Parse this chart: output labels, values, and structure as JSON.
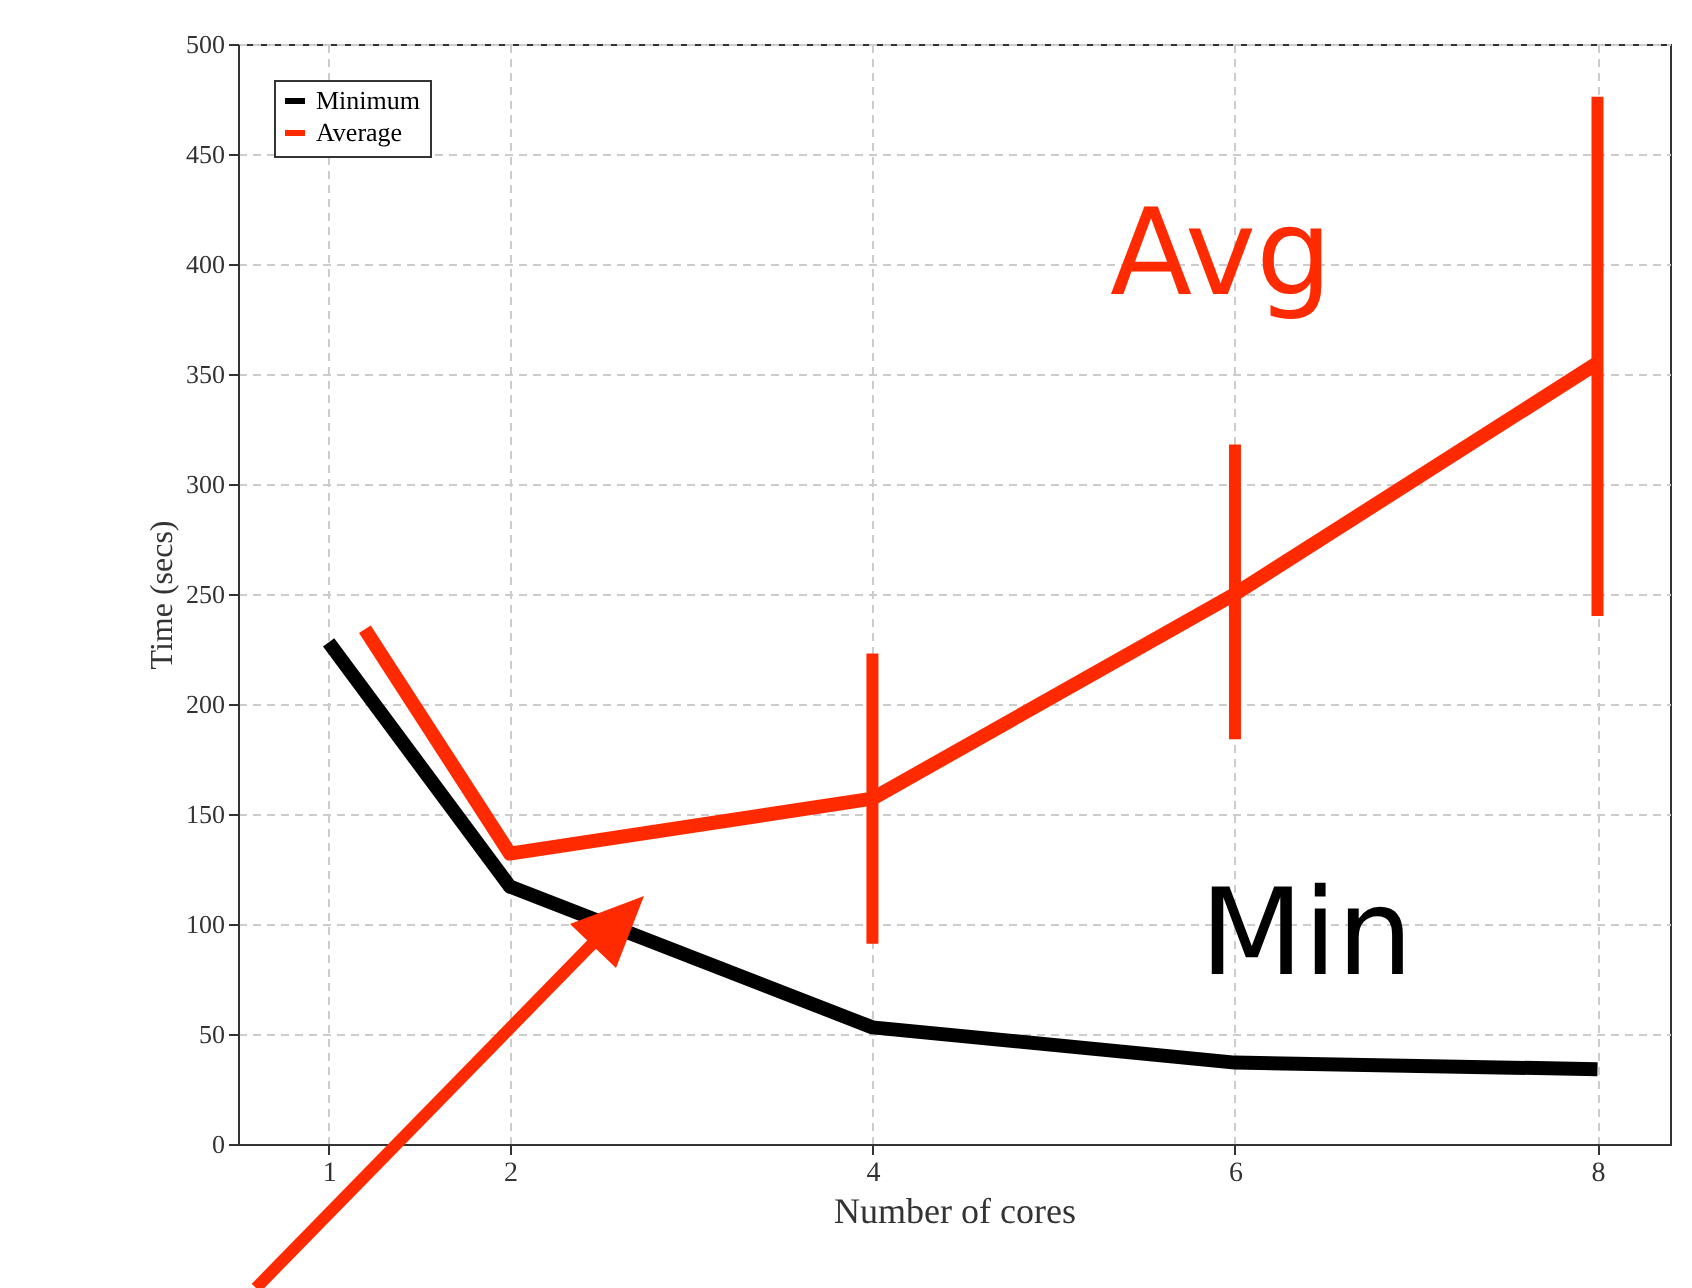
{
  "chart_data": {
    "type": "line",
    "xlabel": "Number of cores",
    "ylabel": "Time (secs)",
    "x": [
      1,
      2,
      4,
      6,
      8
    ],
    "series": [
      {
        "name": "Minimum",
        "color": "#000000",
        "values": [
          228,
          117,
          53,
          37,
          34
        ]
      },
      {
        "name": "Average",
        "color": "#ff2a00",
        "x": [
          1.2,
          2,
          4,
          6,
          8
        ],
        "values": [
          234,
          132,
          157,
          250,
          355
        ],
        "errors": [
          null,
          null,
          [
            91,
            223
          ],
          [
            184,
            318
          ],
          [
            240,
            476
          ]
        ]
      }
    ],
    "xlim": [
      0.5,
      8.4
    ],
    "xticks": [
      1,
      2,
      4,
      6,
      8
    ],
    "ylim": [
      0,
      500
    ],
    "yticks": [
      0,
      50,
      100,
      150,
      200,
      250,
      300,
      350,
      400,
      450,
      500
    ],
    "grid": true,
    "legend": "top left",
    "annotations": [
      "Min",
      "Avg"
    ]
  }
}
